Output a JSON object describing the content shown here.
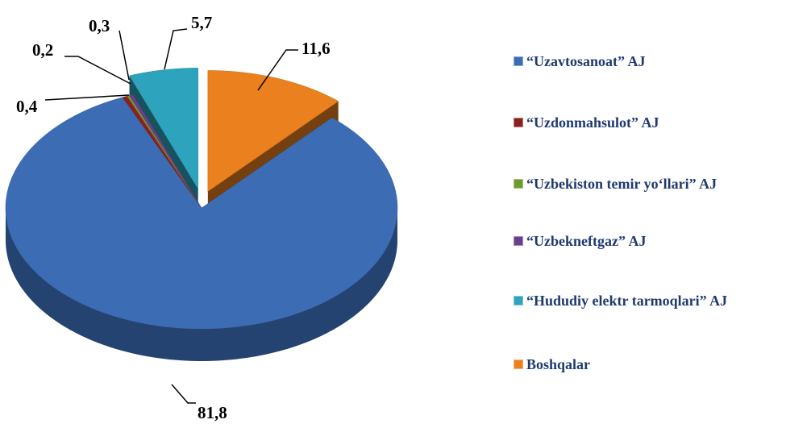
{
  "chart_data": {
    "type": "pie",
    "categories": [
      "“Uzavtosanoat” AJ",
      "“Uzdonmahsulot” AJ",
      "“Uzbekiston temir yo‘llari” AJ",
      "“Uzbekneftgaz” AJ",
      "“Hududiy elektr tarmoqlari” AJ",
      "Boshqalar"
    ],
    "values": [
      81.8,
      0.4,
      0.2,
      0.3,
      5.7,
      11.6
    ],
    "value_labels": [
      "81,8",
      "0,4",
      "0,2",
      "0,3",
      "5,7",
      "11,6"
    ],
    "colors": [
      "#3b6cb4",
      "#8e1f1f",
      "#6f9a2c",
      "#6b3f90",
      "#2da3bd",
      "#ea801e"
    ],
    "legend": "right"
  }
}
